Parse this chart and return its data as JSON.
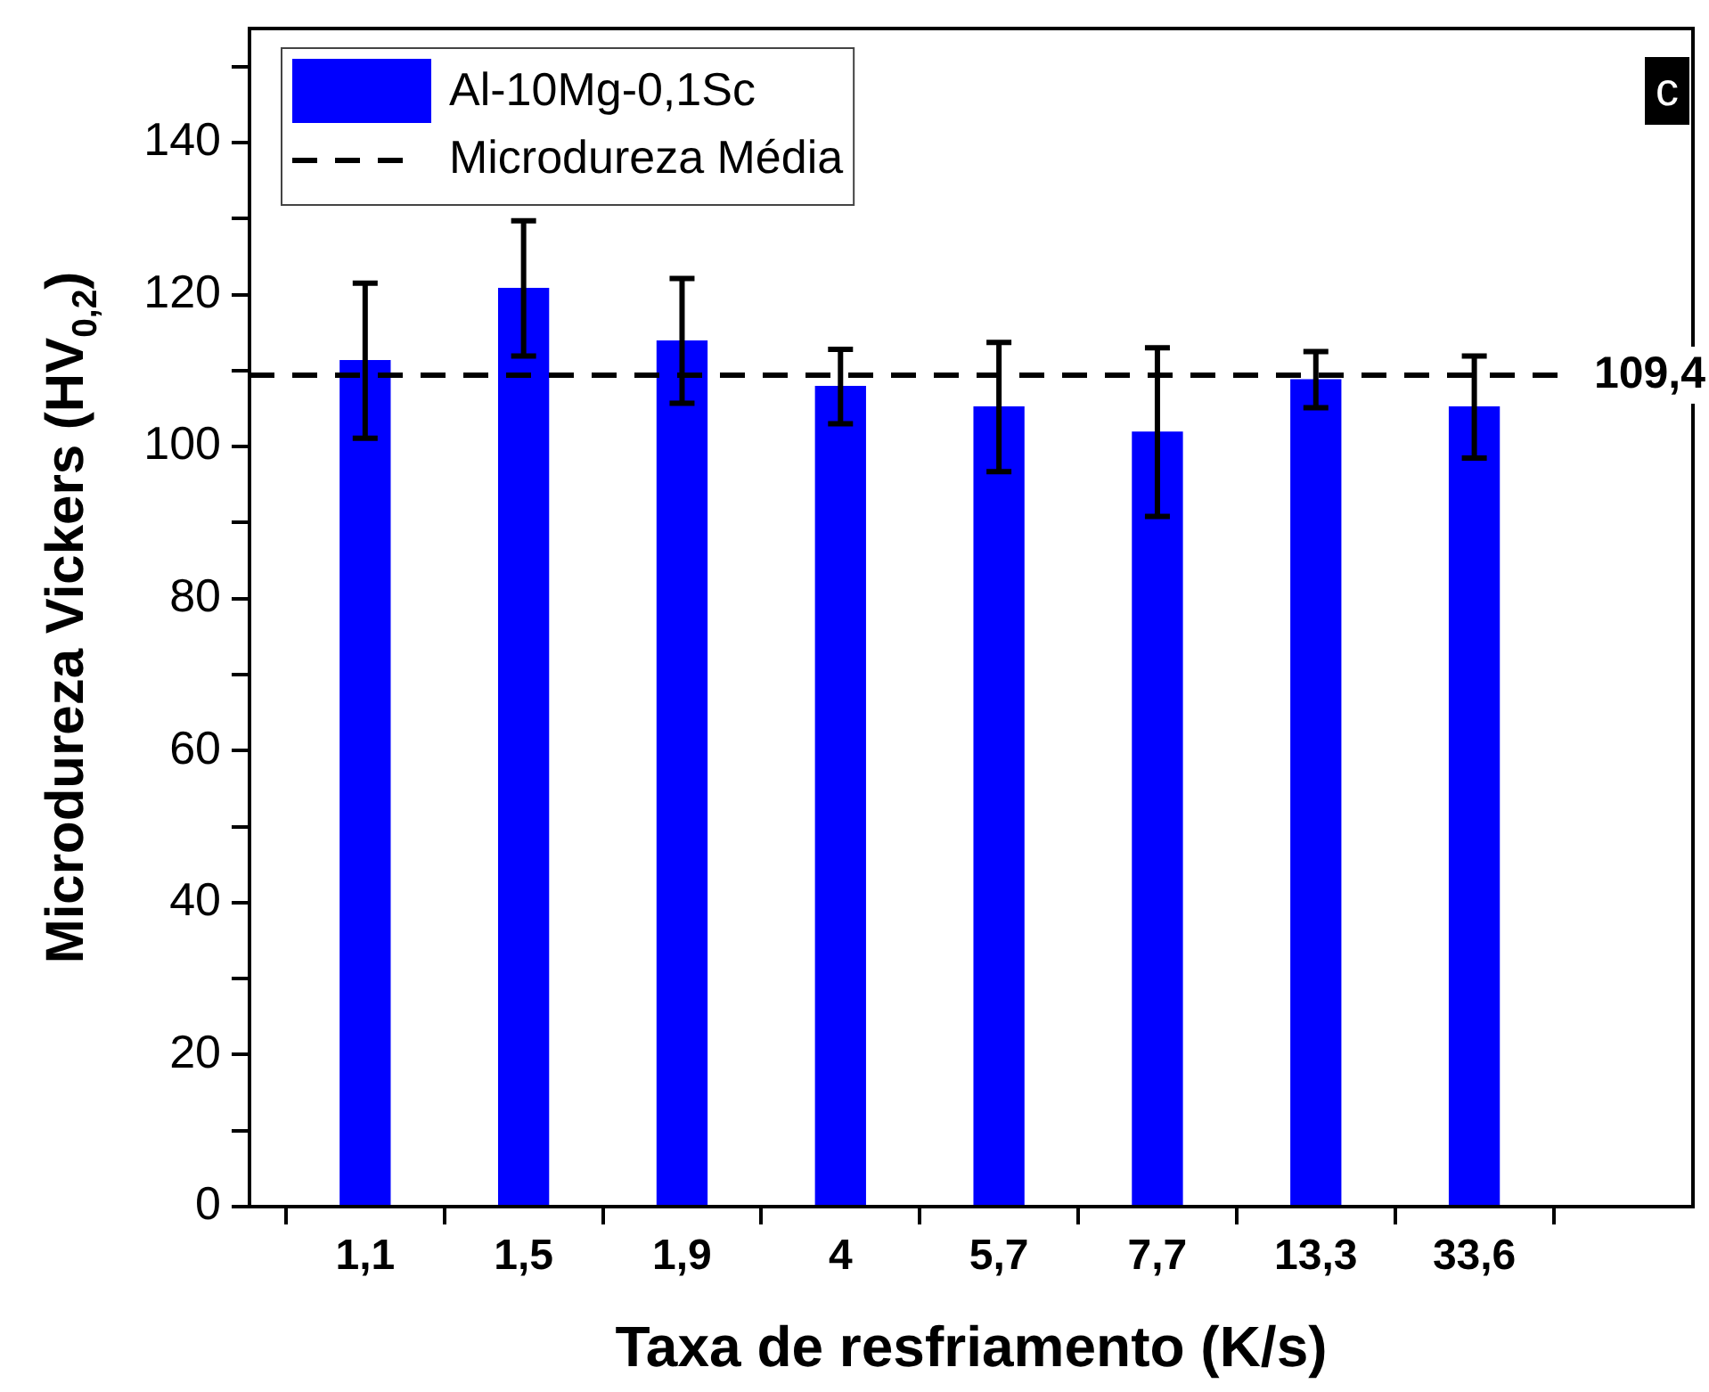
{
  "chart_data": {
    "type": "bar",
    "xlabel": "Taxa de resfriamento (K/s)",
    "ylabel": "Microdureza Vickers (HV$_{0,2}$)",
    "categories": [
      "1,1",
      "1,5",
      "1,9",
      "4",
      "5,7",
      "7,7",
      "13,3",
      "33,6"
    ],
    "series": [
      {
        "name": "Al-10Mg-0,1Sc",
        "color": "#0000ff",
        "values": [
          111.3,
          120.8,
          113.9,
          107.9,
          105.2,
          101.9,
          108.8,
          105.2
        ],
        "errors": [
          10.2,
          8.9,
          8.2,
          4.9,
          8.5,
          11.1,
          3.7,
          6.7
        ]
      }
    ],
    "ylim": [
      0,
      155
    ],
    "yticks": [
      0,
      {
        "value": 10,
        "label": null
      },
      20,
      {
        "value": 30,
        "label": null
      },
      40,
      {
        "value": 50,
        "label": null
      },
      60,
      {
        "value": 70,
        "label": null
      },
      80,
      {
        "value": 90,
        "label": null
      },
      100,
      {
        "value": 110,
        "label": null
      },
      120,
      {
        "value": 130,
        "label": null
      },
      140,
      {
        "value": 150,
        "label": null
      }
    ],
    "ref_lines": [
      {
        "axis": "y",
        "value": 109.4,
        "label": "Microdureza Média",
        "color": "#000000",
        "line_style": "dashed"
      }
    ],
    "annotations": [
      "c",
      "109,4"
    ],
    "legend": "top left",
    "grid": false
  }
}
